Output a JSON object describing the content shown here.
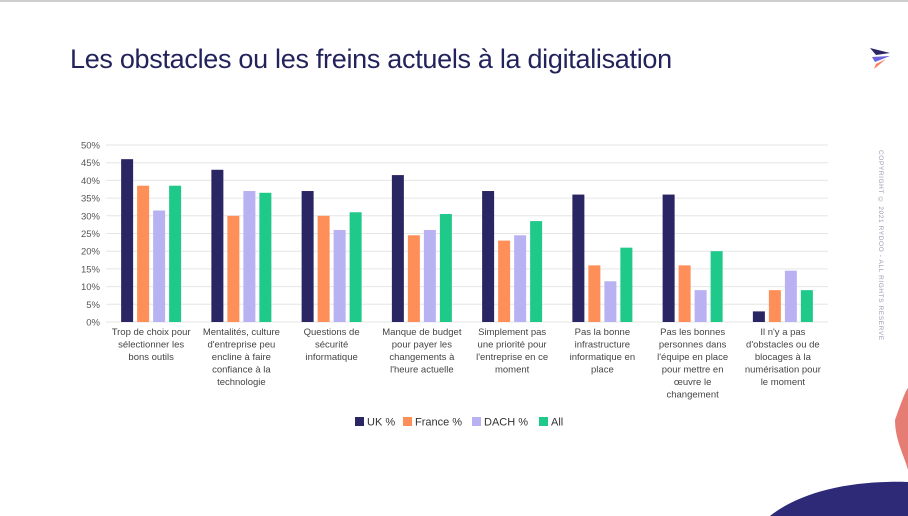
{
  "slide": {
    "title": "Les obstacles ou les freins actuels à la digitalisation",
    "copyright": "COPYRIGHT © 2021 RYDOO - ALL RIGHTS RESERVED"
  },
  "chart_data": {
    "type": "bar",
    "ylim": [
      0,
      50
    ],
    "yticks": [
      "0%",
      "5%",
      "10%",
      "15%",
      "20%",
      "25%",
      "30%",
      "35%",
      "40%",
      "45%",
      "50%"
    ],
    "grid": true,
    "legend_position": "bottom-center",
    "categories": [
      [
        "Trop de choix pour",
        "sélectionner les",
        "bons outils"
      ],
      [
        "Mentalités, culture",
        "d'entreprise peu",
        "encline à faire",
        "confiance à la",
        "technologie"
      ],
      [
        "Questions de",
        "sécurité",
        "informatique"
      ],
      [
        "Manque de budget",
        "pour payer les",
        "changements à",
        "l'heure actuelle"
      ],
      [
        "Simplement pas",
        "une priorité pour",
        "l'entreprise en ce",
        "moment"
      ],
      [
        "Pas la bonne",
        "infrastructure",
        "informatique en",
        "place"
      ],
      [
        "Pas les bonnes",
        "personnes dans",
        "l'équipe en place",
        "pour mettre en",
        "œuvre le",
        "changement"
      ],
      [
        "Il n'y a pas",
        "d'obstacles ou de",
        "blocages à la",
        "numérisation pour",
        "le moment"
      ]
    ],
    "series": [
      {
        "name": "UK %",
        "color": "#2a2563",
        "values": [
          46,
          43,
          37,
          41.5,
          37,
          36,
          36,
          3
        ]
      },
      {
        "name": "France %",
        "color": "#ff8f58",
        "values": [
          38.5,
          30,
          30,
          24.5,
          23,
          16,
          16,
          9
        ]
      },
      {
        "name": "DACH %",
        "color": "#b8b2f2",
        "values": [
          31.5,
          37,
          26,
          26,
          24.5,
          11.5,
          9,
          14.5
        ]
      },
      {
        "name": "All",
        "color": "#1ec98a",
        "values": [
          38.5,
          36.5,
          31,
          30.5,
          28.5,
          21,
          20,
          9
        ]
      }
    ]
  }
}
